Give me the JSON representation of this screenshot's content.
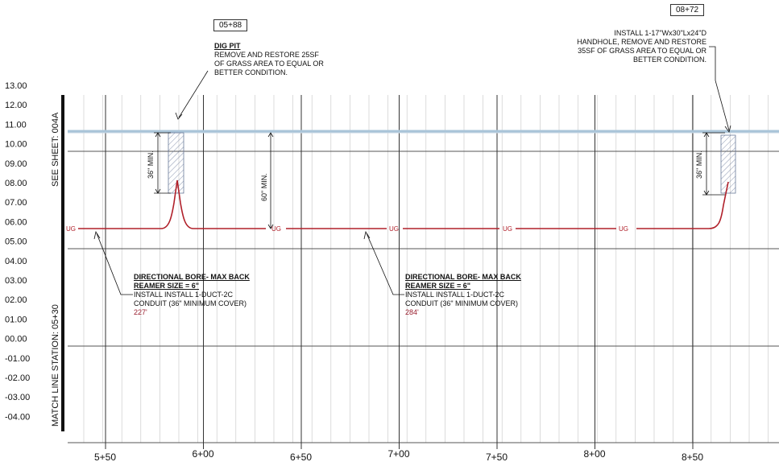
{
  "elevation_axis": {
    "labels": [
      "13.00",
      "12.00",
      "11.00",
      "10.00",
      "09.00",
      "08.00",
      "07.00",
      "06.00",
      "05.00",
      "04.00",
      "03.00",
      "02.00",
      "01.00",
      "00.00",
      "-01.00",
      "-02.00",
      "-03.00",
      "-04.00"
    ]
  },
  "station_axis": {
    "labels": [
      "5+50",
      "6+00",
      "6+50",
      "7+00",
      "7+50",
      "8+00",
      "8+50"
    ]
  },
  "side_labels": {
    "see_sheet": "SEE SHEET: 004A",
    "match_line": "MATCH LINE STATION: 05+30"
  },
  "callouts": {
    "dig_pit": {
      "station": "05+88",
      "title": "DIG PIT",
      "lines": [
        "REMOVE AND RESTORE 25SF",
        "OF GRASS AREA TO EQUAL OR",
        "BETTER CONDITION."
      ]
    },
    "handhole": {
      "station": "08+72",
      "lines": [
        "INSTALL 1-17\"Wx30\"Lx24\"D",
        "HANDHOLE, REMOVE AND RESTORE",
        "35SF OF GRASS AREA TO EQUAL OR",
        "BETTER CONDITION."
      ]
    },
    "bore_1": {
      "title": "DIRECTIONAL BORE- MAX BACK",
      "subtitle": "REAMER SIZE = 6\"",
      "lines": [
        "INSTALL INSTALL 1-DUCT-2C",
        "CONDUIT  (36\" MINIMUM COVER)"
      ],
      "length": "227'"
    },
    "bore_2": {
      "title": "DIRECTIONAL BORE- MAX BACK",
      "subtitle": "REAMER SIZE = 6\"",
      "lines": [
        "INSTALL INSTALL 1-DUCT-2C",
        "CONDUIT  (36\" MINIMUM COVER)"
      ],
      "length": "284'"
    }
  },
  "dimensions": {
    "pit_cover": "36\" MIN.",
    "mid_cover": "60\" MIN.",
    "handhole_cover": "36\" MIN."
  },
  "line_labels": [
    "UG",
    "UG",
    "UG",
    "UG",
    "UG"
  ],
  "colors": {
    "conduit": "#b0202a",
    "grade": "#a9c4d8",
    "grid": "#9a9a9a",
    "length_text": "#9a2030"
  }
}
